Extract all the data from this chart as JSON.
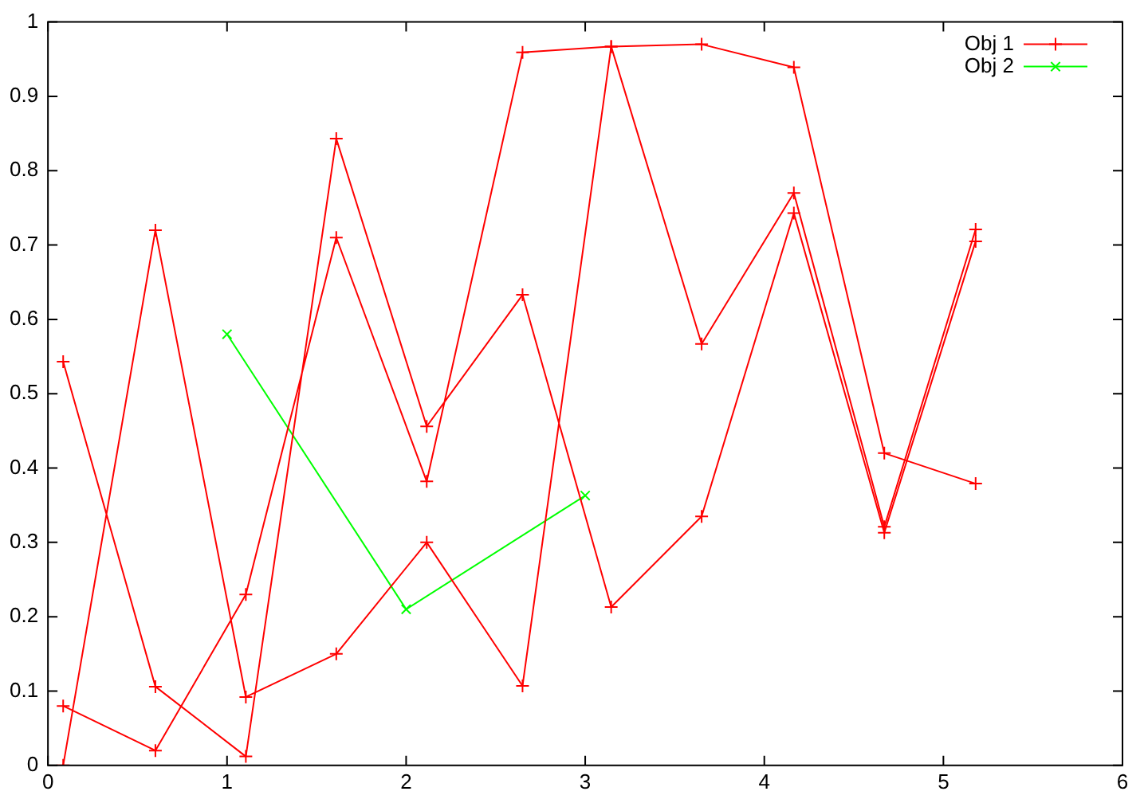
{
  "chart_data": {
    "type": "line",
    "xlim": [
      0,
      6
    ],
    "xticks": [
      0,
      1,
      2,
      3,
      4,
      5,
      6
    ],
    "ylim": [
      0,
      1
    ],
    "yticks": [
      0,
      0.1,
      0.2,
      0.3,
      0.4,
      0.5,
      0.6,
      0.7,
      0.8,
      0.9,
      1
    ],
    "grid": false,
    "legend": "top right",
    "line_style": "solid",
    "series": [
      {
        "name": "Obj 1",
        "color": "#ff0000",
        "marker": "plus",
        "x": [
          0.085,
          0.6,
          1.105,
          1.61,
          2.115,
          2.65,
          3.145,
          3.65,
          4.165,
          4.67,
          5.18,
          null,
          0.085,
          0.6,
          1.105,
          1.61,
          2.115,
          2.65,
          3.145,
          3.65,
          4.165,
          4.67,
          5.18,
          null,
          0.085,
          0.6,
          1.105,
          1.61,
          2.115,
          2.65,
          3.145,
          3.65,
          4.165,
          4.67,
          5.18
        ],
        "values": [
          0.0,
          0.72,
          0.092,
          0.15,
          0.3,
          0.107,
          0.967,
          0.567,
          0.77,
          0.321,
          0.721,
          null,
          0.543,
          0.106,
          0.012,
          0.843,
          0.456,
          0.633,
          0.213,
          0.335,
          0.743,
          0.313,
          0.705,
          null,
          0.08,
          0.02,
          0.23,
          0.71,
          0.382,
          0.959,
          0.967,
          0.97,
          0.939,
          0.42,
          0.379
        ]
      },
      {
        "name": "Obj 2",
        "color": "#00ff00",
        "marker": "cross",
        "x": [
          1,
          2,
          3
        ],
        "values": [
          0.58,
          0.21,
          0.363
        ]
      }
    ]
  }
}
